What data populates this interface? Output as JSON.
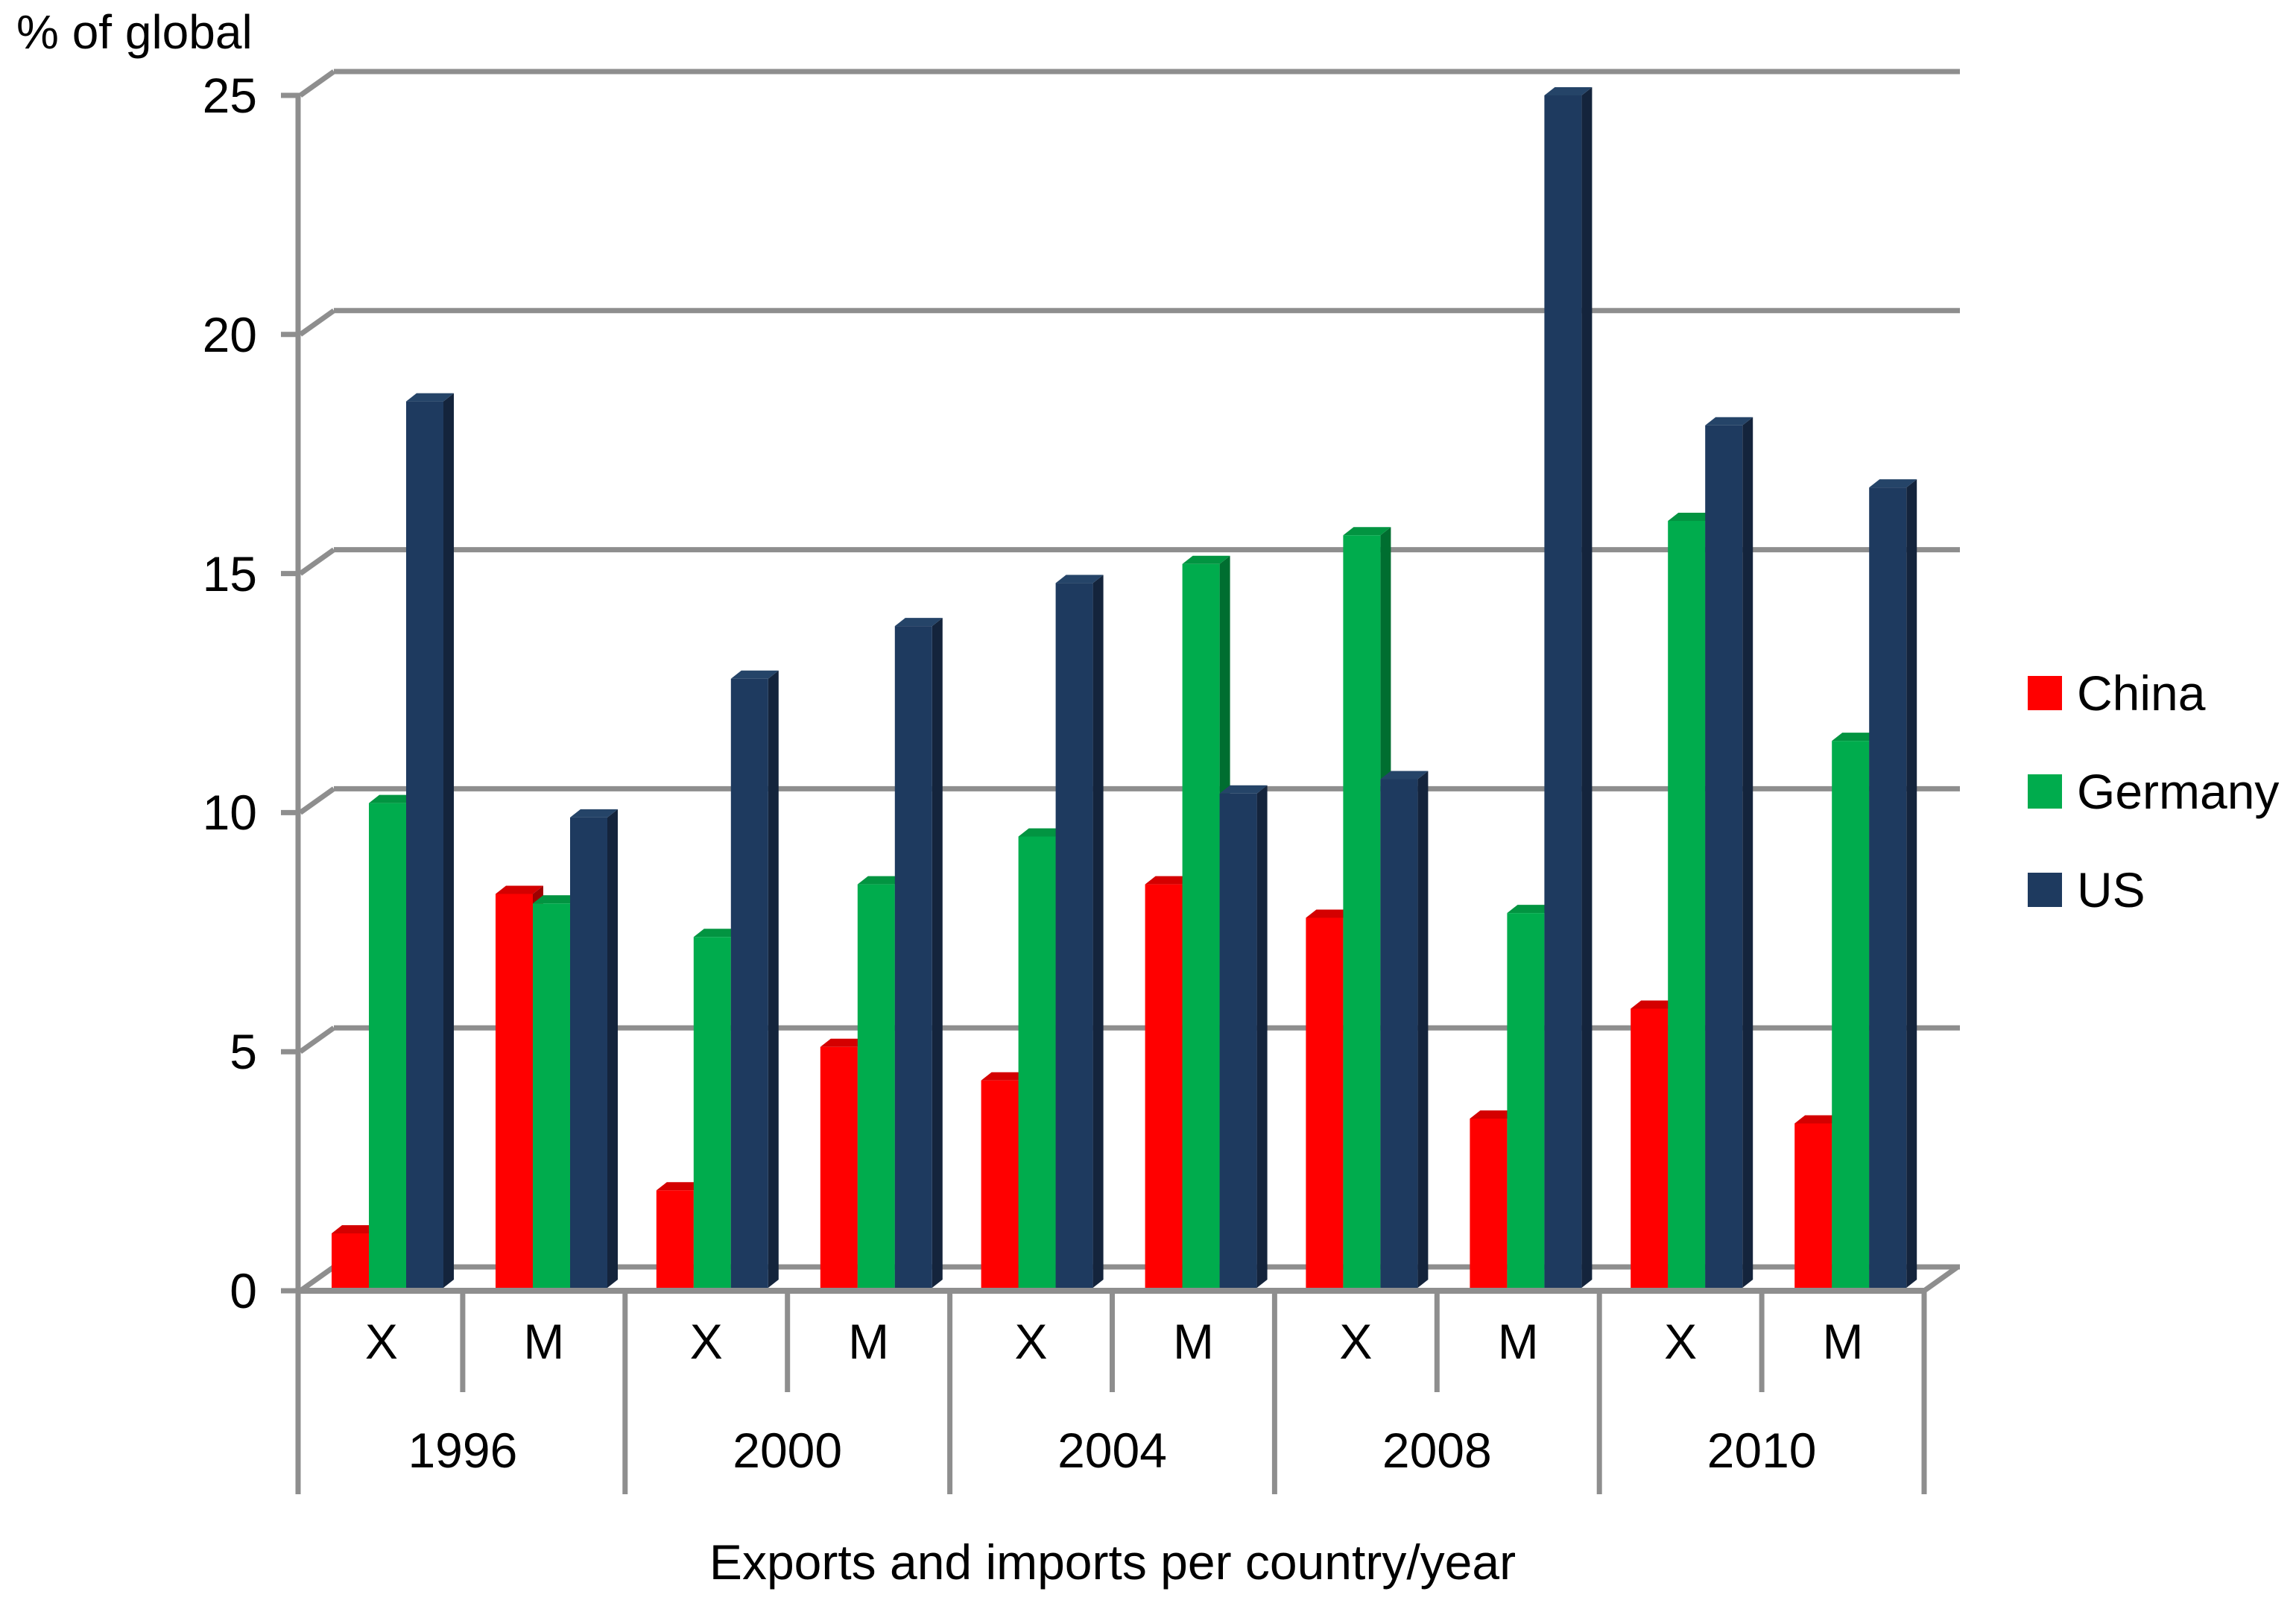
{
  "axis_title": "% of global",
  "title": "Exports and imports per country/year",
  "legend": {
    "position": "right",
    "entries": [
      {
        "label": "China",
        "color": "#FF0000"
      },
      {
        "label": "Germany",
        "color": "#00AC4D"
      },
      {
        "label": "US",
        "color": "#1E3A5F"
      }
    ]
  },
  "colors": {
    "grid": "#8E8E8E",
    "background": "#FFFFFF",
    "text": "#000000"
  },
  "chart_data": {
    "type": "bar",
    "style": "3d-clustered-column",
    "title": "Exports and imports per country/year",
    "ylabel": "% of global",
    "xlabel": "",
    "ylim": [
      0,
      25
    ],
    "y_ticks": [
      "0",
      "5",
      "10",
      "15",
      "20",
      "25"
    ],
    "grid": true,
    "legend_position": "right",
    "subgroup_labels": [
      "X",
      "M"
    ],
    "series_order": [
      "China",
      "Germany",
      "US"
    ],
    "series_colors": {
      "China": {
        "front": "#FF0000",
        "top": "#D40000",
        "side": "#9E0000"
      },
      "Germany": {
        "front": "#00AC4D",
        "top": "#029441",
        "side": "#006E30"
      },
      "US": {
        "front": "#1E3A5F",
        "top": "#254468",
        "side": "#14243C"
      }
    },
    "groups": [
      {
        "year": "1996",
        "X": {
          "China": 1.2,
          "Germany": 10.2,
          "US": 18.6
        },
        "M": {
          "China": 8.3,
          "Germany": 8.1,
          "US": 9.9
        }
      },
      {
        "year": "2000",
        "X": {
          "China": 2.1,
          "Germany": 7.4,
          "US": 12.8
        },
        "M": {
          "China": 5.1,
          "Germany": 8.5,
          "US": 13.9
        }
      },
      {
        "year": "2004",
        "X": {
          "China": 4.4,
          "Germany": 9.5,
          "US": 14.8
        },
        "M": {
          "China": 8.5,
          "Germany": 15.2,
          "US": 10.4
        }
      },
      {
        "year": "2008",
        "X": {
          "China": 7.8,
          "Germany": 15.8,
          "US": 10.7
        },
        "M": {
          "China": 3.6,
          "Germany": 7.9,
          "US": 25.0
        }
      },
      {
        "year": "2010",
        "X": {
          "China": 5.9,
          "Germany": 16.1,
          "US": 18.1
        },
        "M": {
          "China": 3.5,
          "Germany": 11.5,
          "US": 16.8
        }
      }
    ]
  }
}
